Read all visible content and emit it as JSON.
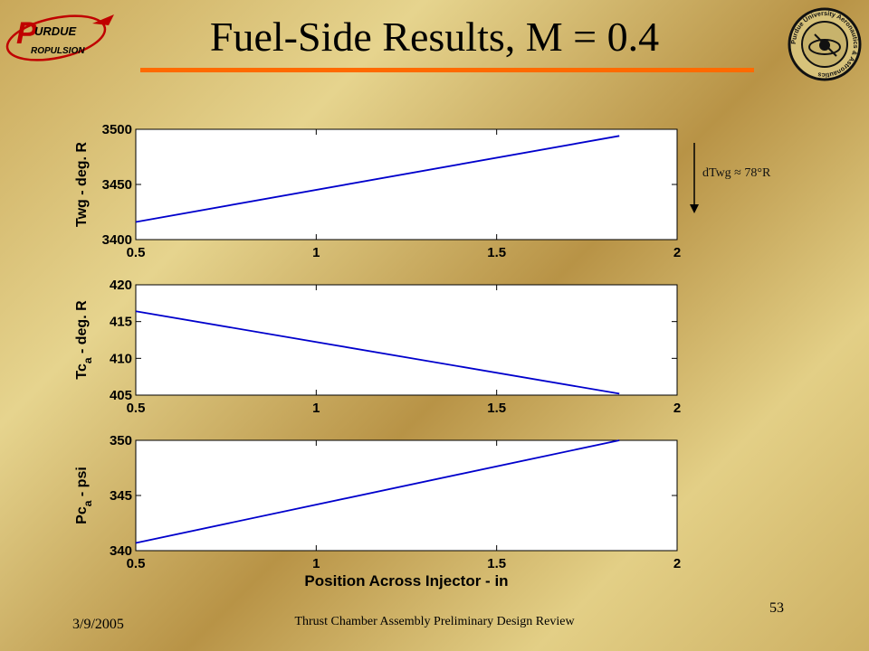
{
  "slide": {
    "title": "Fuel-Side Results, M = 0.4",
    "date": "3/9/2005",
    "footer": "Thrust Chamber Assembly Preliminary Design Review",
    "page_number": "53",
    "annotation": "dTwg ≈ 78°R",
    "logos": {
      "left": {
        "name": "purdue-propulsion-logo",
        "line1": "URDUE",
        "line2": "ROPULSION"
      },
      "right": {
        "name": "purdue-aeronautics-astronautics-seal",
        "ring_text": "Purdue University Aeronautics & Astronautics"
      }
    },
    "colors": {
      "accent_rule": "#ff6a00",
      "series": "#0000cc"
    }
  },
  "chart_data": [
    {
      "type": "line",
      "ylabel": "Twg - deg. R",
      "xlim": [
        0.5,
        2
      ],
      "ylim": [
        3400,
        3500
      ],
      "xticks": [
        0.5,
        1,
        1.5,
        2
      ],
      "yticks": [
        3400,
        3450,
        3500
      ],
      "x_tick_labels": [
        "0.5",
        "1",
        "1.5",
        "2"
      ],
      "y_tick_labels": [
        "3400",
        "3450",
        "3500"
      ],
      "grid": false,
      "series": [
        {
          "x": [
            0.5,
            1.84
          ],
          "y": [
            3416,
            3494
          ]
        }
      ]
    },
    {
      "type": "line",
      "ylabel": "Tc",
      "ylabel_sub": "a",
      "ylabel_rest": " - deg. R",
      "xlim": [
        0.5,
        2
      ],
      "ylim": [
        405,
        420
      ],
      "xticks": [
        0.5,
        1,
        1.5,
        2
      ],
      "yticks": [
        405,
        410,
        415,
        420
      ],
      "x_tick_labels": [
        "0.5",
        "1",
        "1.5",
        "2"
      ],
      "y_tick_labels": [
        "405",
        "410",
        "415",
        "420"
      ],
      "grid": false,
      "series": [
        {
          "x": [
            0.5,
            1.84
          ],
          "y": [
            416.4,
            405.2
          ]
        }
      ]
    },
    {
      "type": "line",
      "ylabel": "Pc",
      "ylabel_sub": "a",
      "ylabel_rest": " - psi",
      "xlabel": "Position Across Injector - in",
      "xlim": [
        0.5,
        2
      ],
      "ylim": [
        340,
        350
      ],
      "xticks": [
        0.5,
        1,
        1.5,
        2
      ],
      "yticks": [
        340,
        345,
        350
      ],
      "x_tick_labels": [
        "0.5",
        "1",
        "1.5",
        "2"
      ],
      "y_tick_labels": [
        "340",
        "345",
        "350"
      ],
      "grid": false,
      "series": [
        {
          "x": [
            0.5,
            1.84
          ],
          "y": [
            340.7,
            350
          ]
        }
      ]
    }
  ]
}
